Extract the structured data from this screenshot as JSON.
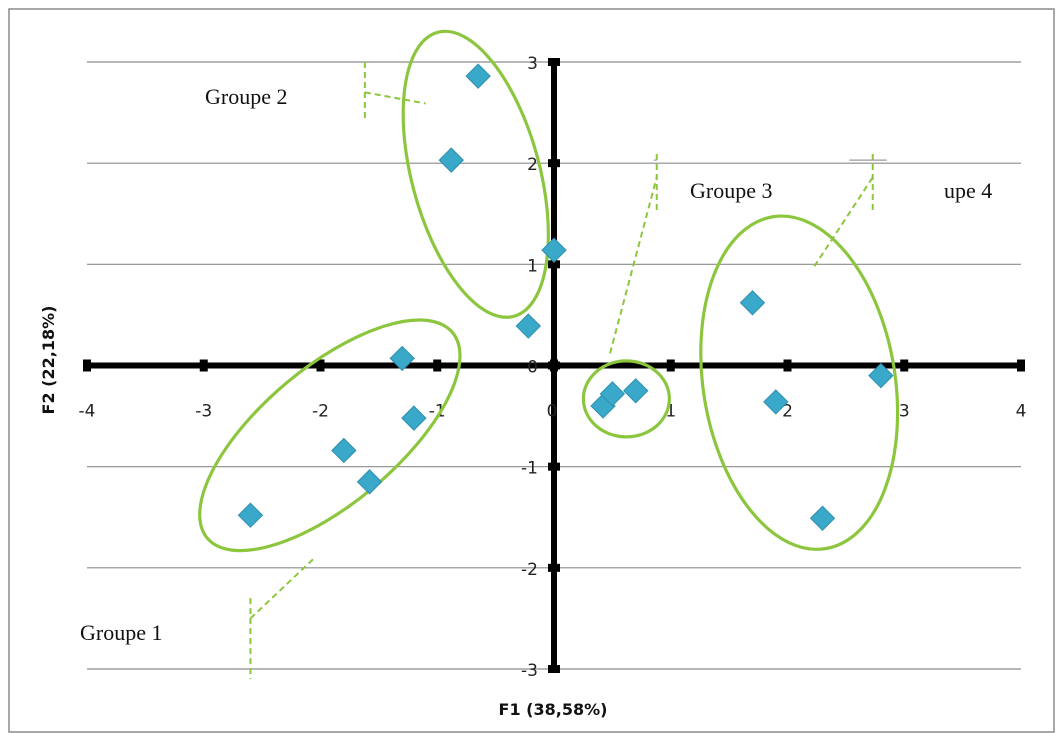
{
  "chart_data": {
    "type": "scatter",
    "title": "",
    "xlabel": "F1 (38,58%)",
    "ylabel": "F2 (22,18%)",
    "xlim": [
      -4,
      4
    ],
    "ylim": [
      -3,
      3
    ],
    "xticks": [
      -4,
      -3,
      -2,
      -1,
      0,
      1,
      2,
      3,
      4
    ],
    "yticks": [
      -3,
      -2,
      -1,
      0,
      1,
      2,
      3
    ],
    "grid": "horizontal",
    "series": [
      {
        "color": "#3aa8c8",
        "points": [
          {
            "x": -2.6,
            "y": -1.48
          },
          {
            "x": -1.8,
            "y": -0.84
          },
          {
            "x": -1.58,
            "y": -1.15
          },
          {
            "x": -1.2,
            "y": -0.52
          },
          {
            "x": -1.3,
            "y": 0.07
          },
          {
            "x": -0.65,
            "y": 2.86
          },
          {
            "x": -0.88,
            "y": 2.03
          },
          {
            "x": 0.0,
            "y": 1.14
          },
          {
            "x": -0.22,
            "y": 0.39
          },
          {
            "x": 0.42,
            "y": -0.4
          },
          {
            "x": 0.5,
            "y": -0.28
          },
          {
            "x": 0.7,
            "y": -0.25
          },
          {
            "x": 1.7,
            "y": 0.62
          },
          {
            "x": 1.9,
            "y": -0.36
          },
          {
            "x": 2.3,
            "y": -1.51
          },
          {
            "x": 2.8,
            "y": -0.1
          }
        ]
      }
    ],
    "annotations": [
      {
        "label": "Groupe 1",
        "color": "#8cc63f"
      },
      {
        "label": "Groupe 2",
        "color": "#8cc63f"
      },
      {
        "label": "Groupe 3",
        "color": "#8cc63f"
      },
      {
        "label": "upe 4",
        "color": "#8cc63f"
      }
    ]
  },
  "colors": {
    "marker": "#3aa8c8",
    "ellipse": "#8cc63f",
    "axis": "#000000",
    "grid": "#8c8c8c",
    "frame": "#8c8c8c"
  }
}
